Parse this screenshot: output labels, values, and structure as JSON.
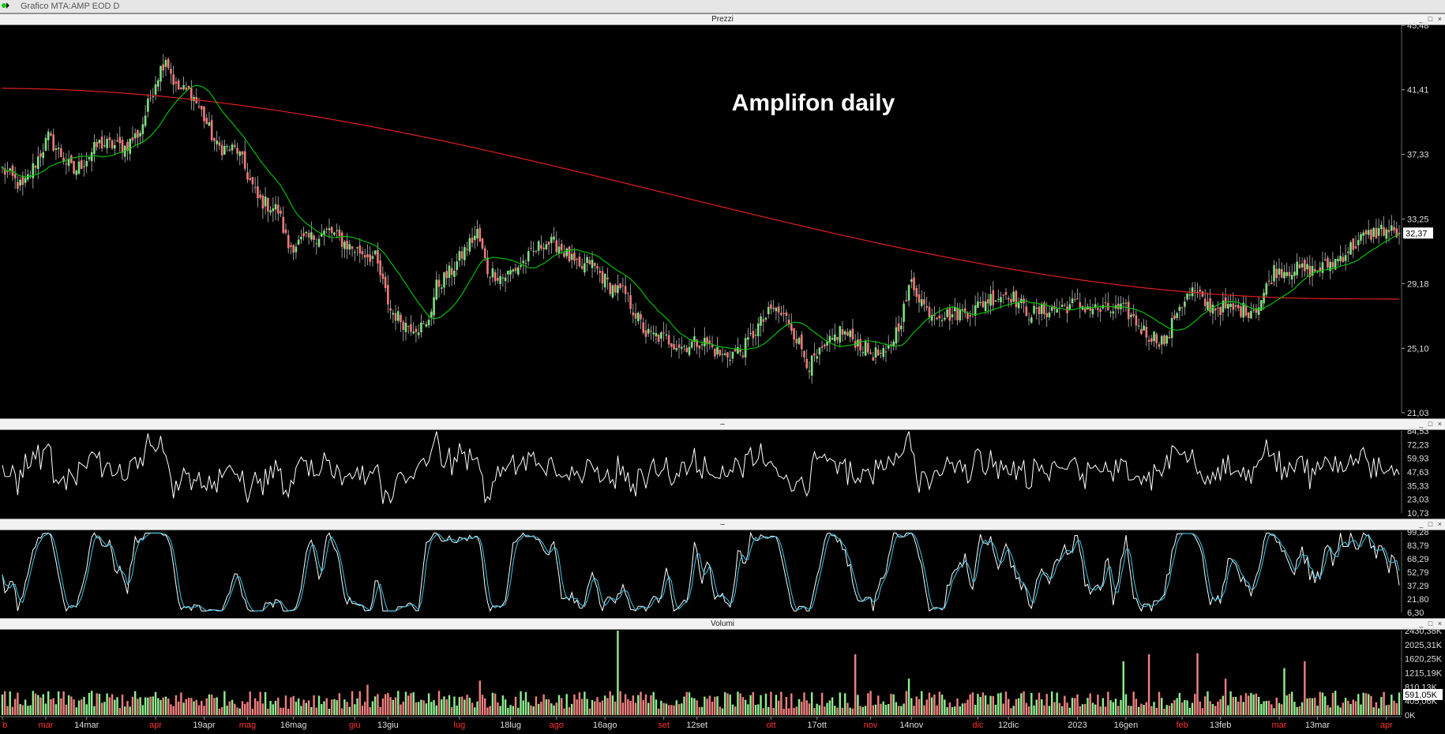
{
  "window_title": "Grafico MTA:AMP EOD D",
  "panels": {
    "price_label": "Prezzi",
    "osc1_label": "–",
    "osc2_label": "–",
    "volume_label": "Volumi",
    "buttons": "_ □ ×"
  },
  "current_price_label": "32,37",
  "chart_data": [
    {
      "type": "candlestick",
      "title": "Amplifon daily",
      "ylim": [
        21.03,
        45.48
      ],
      "y_ticks": [
        "45,48",
        "41,41",
        "37,33",
        "33,25",
        "29,18",
        "25,10",
        "21,03"
      ],
      "y_tick_values": [
        45.48,
        41.41,
        37.33,
        33.25,
        29.18,
        25.1,
        21.03
      ],
      "last_price": 32.37,
      "close_anchors": [
        [
          0,
          36.4
        ],
        [
          8,
          35.2
        ],
        [
          18,
          38.4
        ],
        [
          28,
          36.2
        ],
        [
          38,
          38.0
        ],
        [
          48,
          37.8
        ],
        [
          54,
          38.8
        ],
        [
          60,
          42.0
        ],
        [
          64,
          43.5
        ],
        [
          68,
          41.5
        ],
        [
          74,
          41.2
        ],
        [
          78,
          40.0
        ],
        [
          84,
          37.8
        ],
        [
          92,
          37.6
        ],
        [
          100,
          34.5
        ],
        [
          108,
          33.8
        ],
        [
          112,
          31.5
        ],
        [
          120,
          32.0
        ],
        [
          128,
          32.5
        ],
        [
          136,
          31.5
        ],
        [
          146,
          30.8
        ],
        [
          152,
          27.5
        ],
        [
          158,
          26.6
        ],
        [
          166,
          26.4
        ],
        [
          170,
          29.0
        ],
        [
          176,
          30.0
        ],
        [
          182,
          31.5
        ],
        [
          186,
          32.4
        ],
        [
          190,
          30.0
        ],
        [
          196,
          29.6
        ],
        [
          200,
          30.0
        ],
        [
          206,
          30.8
        ],
        [
          212,
          31.8
        ],
        [
          218,
          31.6
        ],
        [
          226,
          30.0
        ],
        [
          230,
          30.6
        ],
        [
          238,
          29.0
        ],
        [
          244,
          28.5
        ],
        [
          252,
          26.0
        ],
        [
          260,
          25.7
        ],
        [
          266,
          25.2
        ],
        [
          274,
          25.6
        ],
        [
          282,
          24.6
        ],
        [
          290,
          25.0
        ],
        [
          296,
          26.5
        ],
        [
          302,
          27.6
        ],
        [
          308,
          26.8
        ],
        [
          316,
          24.0
        ],
        [
          322,
          25.0
        ],
        [
          328,
          26.2
        ],
        [
          334,
          25.6
        ],
        [
          340,
          24.8
        ],
        [
          346,
          24.6
        ],
        [
          352,
          27.0
        ],
        [
          356,
          29.3
        ],
        [
          362,
          27.5
        ],
        [
          370,
          27.2
        ],
        [
          380,
          27.5
        ],
        [
          386,
          28.2
        ],
        [
          394,
          28.6
        ],
        [
          402,
          27.3
        ],
        [
          410,
          27.5
        ],
        [
          420,
          27.9
        ],
        [
          430,
          27.5
        ],
        [
          440,
          27.5
        ],
        [
          448,
          26.0
        ],
        [
          456,
          25.5
        ],
        [
          460,
          27.6
        ],
        [
          466,
          28.7
        ],
        [
          472,
          27.8
        ],
        [
          480,
          27.6
        ],
        [
          488,
          27.5
        ],
        [
          492,
          27.8
        ],
        [
          498,
          30.0
        ],
        [
          506,
          30.1
        ],
        [
          514,
          30.0
        ],
        [
          522,
          30.6
        ],
        [
          532,
          32.0
        ],
        [
          540,
          32.6
        ],
        [
          546,
          32.4
        ]
      ],
      "series": [
        {
          "name": "",
          "color": "#00cc00",
          "ma_window": 20
        },
        {
          "name": "",
          "color": "#e02020",
          "ma_window": 200
        }
      ]
    },
    {
      "type": "line",
      "ylim": [
        10.73,
        84.53
      ],
      "y_ticks": [
        "84,53",
        "72,23",
        "59,93",
        "47,63",
        "35,33",
        "23,03",
        "10,73"
      ],
      "y_tick_values": [
        84.53,
        72.23,
        59.93,
        47.63,
        35.33,
        23.03,
        10.73
      ],
      "series": [
        {
          "name": "",
          "color": "#ffffff"
        }
      ]
    },
    {
      "type": "line",
      "ylim": [
        6.3,
        99.28
      ],
      "y_ticks": [
        "99,28",
        "83,79",
        "68,29",
        "52,79",
        "37,29",
        "21,80",
        "6,30"
      ],
      "y_tick_values": [
        99.28,
        83.79,
        68.29,
        52.79,
        37.29,
        21.8,
        6.3
      ],
      "series": [
        {
          "name": "",
          "color": "#ffffff"
        },
        {
          "name": "",
          "color": "#40c8e8"
        }
      ]
    },
    {
      "type": "bar",
      "ylim": [
        0,
        2430380
      ],
      "y_ticks": [
        "2430,38K",
        "2025,31K",
        "1620,25K",
        "1215,19K",
        "810,13K",
        "405,06K",
        "0K"
      ],
      "y_tick_values": [
        2430380,
        2025310,
        1620250,
        1215190,
        810130,
        405060,
        0
      ],
      "current_volume_label": "591,05K",
      "up_color": "#90ee90",
      "down_color": "#f08080",
      "spikes": [
        {
          "day": 241,
          "value": 2430000
        },
        {
          "day": 334,
          "value": 1750000
        },
        {
          "day": 439,
          "value": 1550000
        },
        {
          "day": 449,
          "value": 1750000
        },
        {
          "day": 468,
          "value": 1780000
        },
        {
          "day": 502,
          "value": 1350000
        },
        {
          "day": 510,
          "value": 1550000
        },
        {
          "day": 143,
          "value": 870000
        },
        {
          "day": 187,
          "value": 990000
        },
        {
          "day": 355,
          "value": 1050000
        },
        {
          "day": 479,
          "value": 1050000
        }
      ],
      "x_tick_labels": [
        {
          "text": "b",
          "day": 0,
          "month": true
        },
        {
          "text": "mar",
          "day": 17,
          "month": true
        },
        {
          "text": "14mar",
          "day": 33,
          "month": false
        },
        {
          "text": "apr",
          "day": 60,
          "month": true
        },
        {
          "text": "19apr",
          "day": 79,
          "month": false
        },
        {
          "text": "mag",
          "day": 96,
          "month": true
        },
        {
          "text": "16mag",
          "day": 114,
          "month": false
        },
        {
          "text": "giu",
          "day": 138,
          "month": true
        },
        {
          "text": "13giu",
          "day": 151,
          "month": false
        },
        {
          "text": "lug",
          "day": 179,
          "month": true
        },
        {
          "text": "18lug",
          "day": 199,
          "month": false
        },
        {
          "text": "ago",
          "day": 217,
          "month": true
        },
        {
          "text": "16ago",
          "day": 236,
          "month": false
        },
        {
          "text": "set",
          "day": 259,
          "month": true
        },
        {
          "text": "12set",
          "day": 272,
          "month": false
        },
        {
          "text": "ott",
          "day": 301,
          "month": true
        },
        {
          "text": "17ott",
          "day": 319,
          "month": false
        },
        {
          "text": "nov",
          "day": 340,
          "month": true
        },
        {
          "text": "14nov",
          "day": 356,
          "month": false
        },
        {
          "text": "dic",
          "day": 382,
          "month": true
        },
        {
          "text": "12dic",
          "day": 394,
          "month": false
        },
        {
          "text": "2023",
          "day": 421,
          "month": false
        },
        {
          "text": "16gen",
          "day": 440,
          "month": false
        },
        {
          "text": "feb",
          "day": 462,
          "month": true
        },
        {
          "text": "13feb",
          "day": 477,
          "month": false
        },
        {
          "text": "mar",
          "day": 500,
          "month": true
        },
        {
          "text": "13mar",
          "day": 515,
          "month": false
        },
        {
          "text": "apr",
          "day": 542,
          "month": true
        }
      ]
    }
  ]
}
